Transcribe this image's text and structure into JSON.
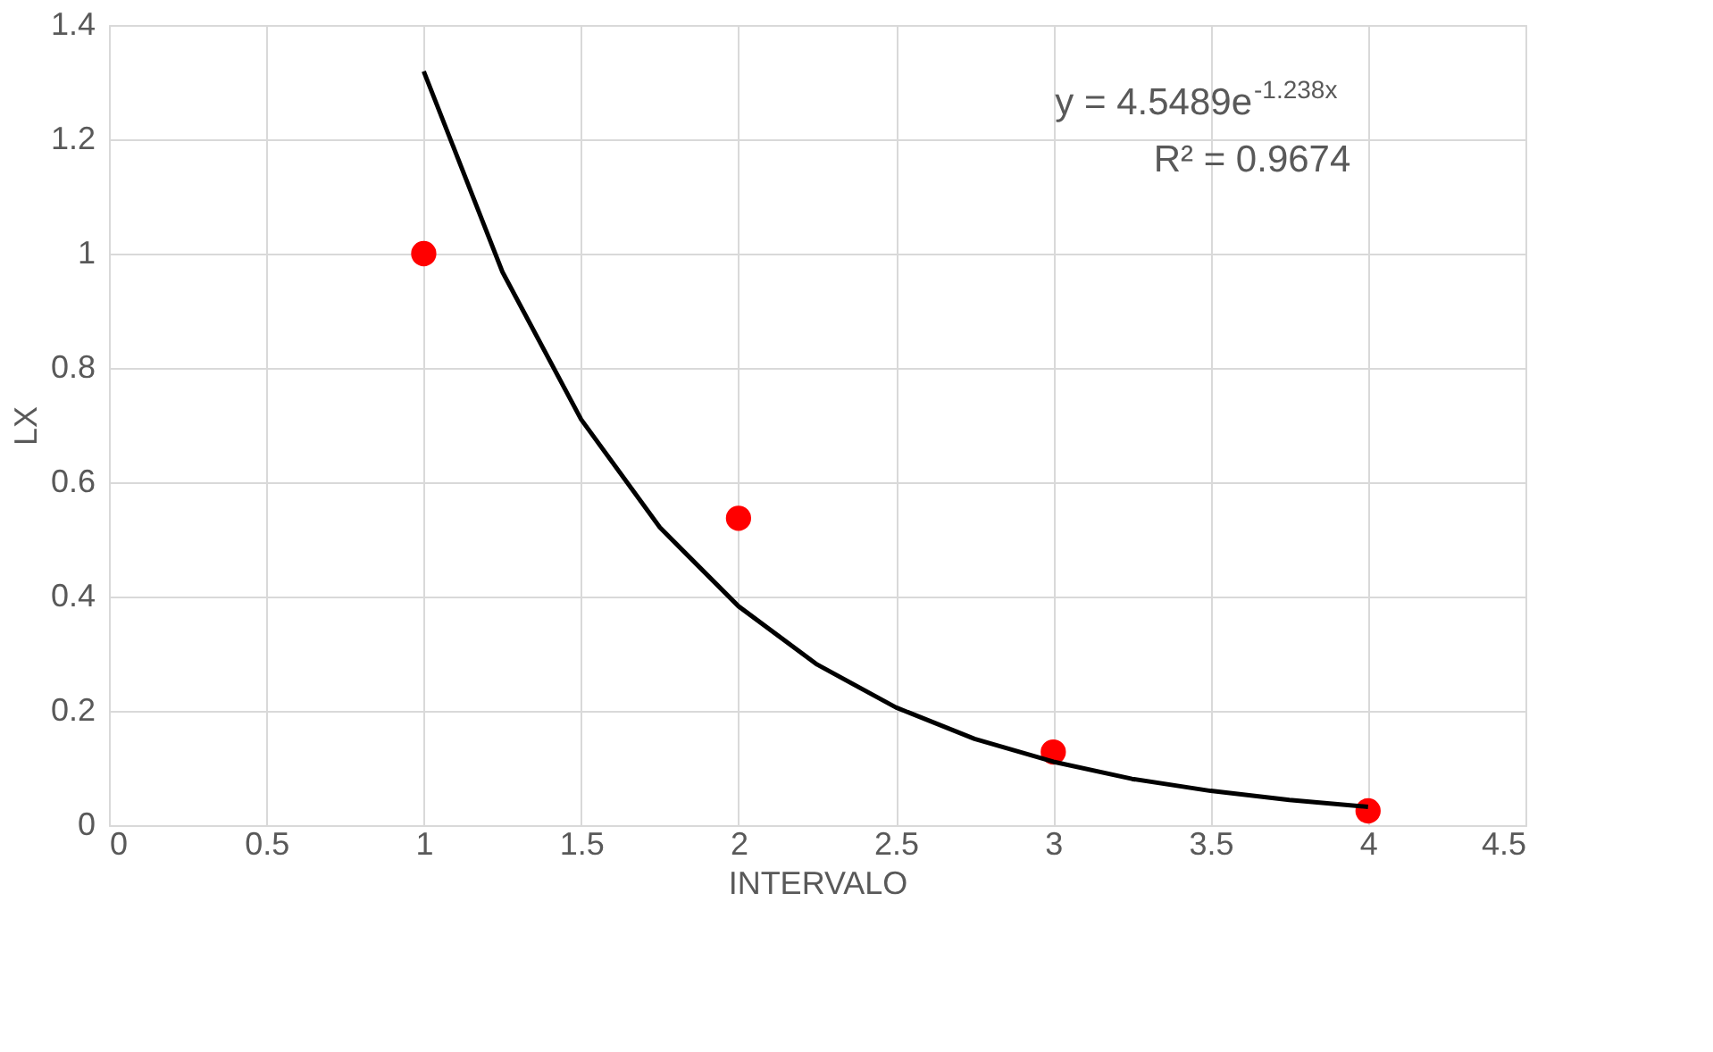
{
  "chart_data": {
    "type": "scatter",
    "xlabel": "INTERVALO",
    "ylabel": "LX",
    "series": [
      {
        "color": "#ff0000",
        "x": [
          1,
          2,
          3,
          4
        ],
        "values": [
          1.0,
          0.537,
          0.128,
          0.025
        ],
        "marker": "circle"
      },
      {
        "type": "line",
        "color": "#000000",
        "x": [
          1,
          1.25,
          1.5,
          1.75,
          2,
          2.25,
          2.5,
          2.75,
          3,
          3.25,
          3.5,
          3.75,
          4
        ],
        "values": [
          1.319,
          0.968,
          0.71,
          0.521,
          0.383,
          0.281,
          0.206,
          0.151,
          0.111,
          0.081,
          0.06,
          0.044,
          0.032
        ],
        "line_style": "solid",
        "marker": "none"
      }
    ],
    "xlim": [
      0,
      4.5
    ],
    "xticks": [
      0,
      0.5,
      1,
      1.5,
      2,
      2.5,
      3,
      3.5,
      4,
      4.5
    ],
    "ylim": [
      0,
      1.4
    ],
    "yticks": [
      0,
      0.2,
      0.4,
      0.6,
      0.8,
      1,
      1.2,
      1.4
    ],
    "grid": true,
    "annotations": [
      "y = 4.5489e$^{-1.238x}$",
      "R² = 0.9674"
    ]
  }
}
